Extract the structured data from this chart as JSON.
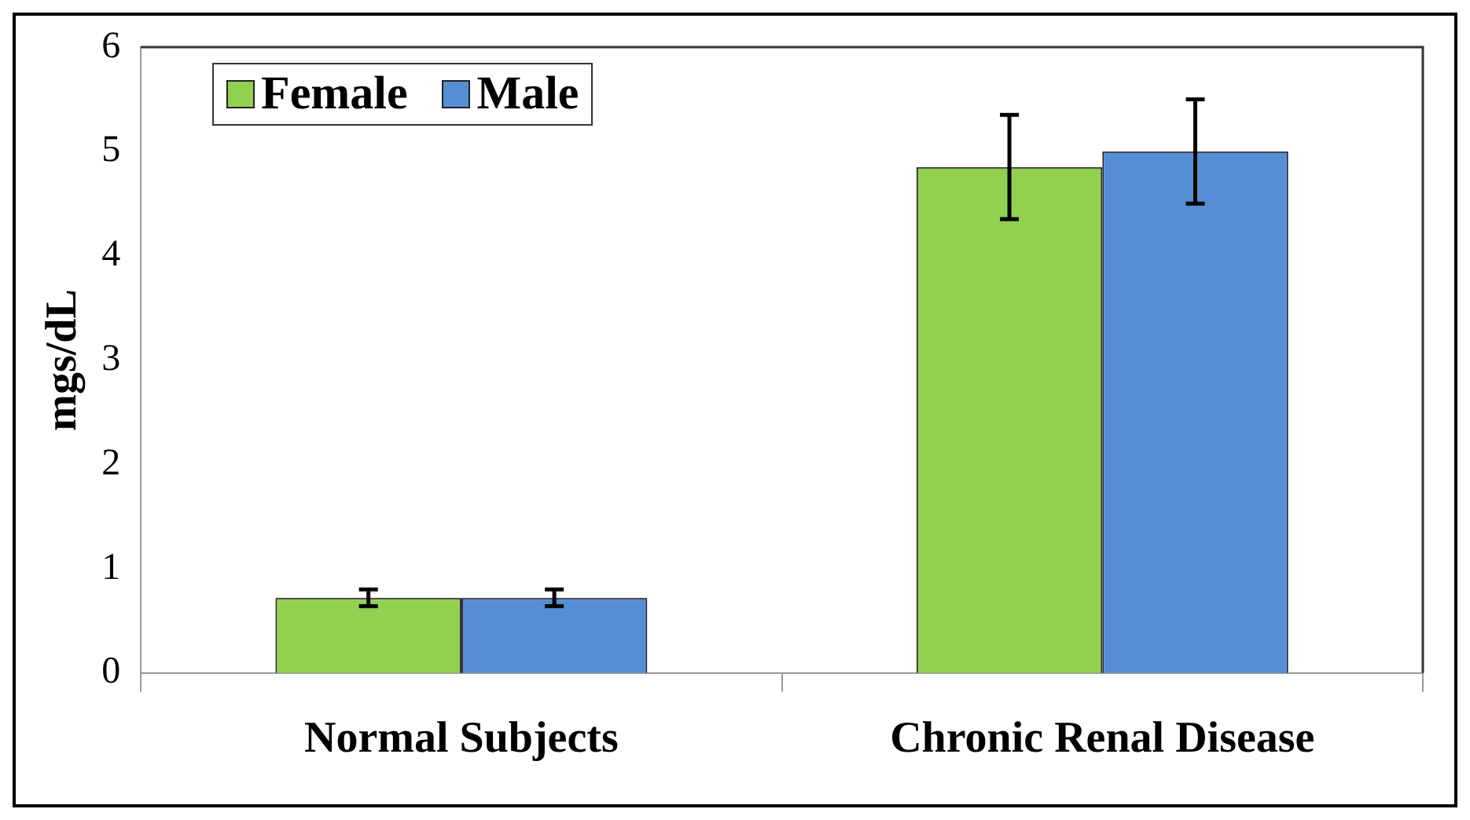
{
  "chart_data": {
    "type": "bar",
    "ylabel": "mgs/dL",
    "categories": [
      "Normal Subjects",
      "Chronic Renal Disease"
    ],
    "series": [
      {
        "name": "Female",
        "color": "#92d050",
        "values": [
          0.72,
          4.85
        ],
        "errors": [
          0.08,
          0.5
        ]
      },
      {
        "name": "Male",
        "color": "#558ed5",
        "values": [
          0.72,
          5.0
        ],
        "errors": [
          0.08,
          0.5
        ]
      }
    ],
    "ylim": [
      0,
      6
    ],
    "yticks": [
      0,
      1,
      2,
      3,
      4,
      5,
      6
    ],
    "grid": false,
    "legend": "top left"
  }
}
